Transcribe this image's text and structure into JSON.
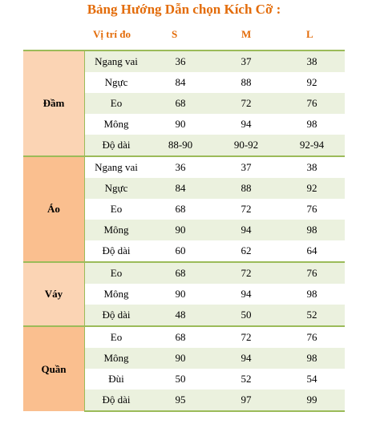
{
  "title": "Bảng Hướng Dẫn chọn Kích Cỡ :",
  "headers": {
    "position": "Vị trí đo",
    "s": "S",
    "m": "M",
    "l": "L"
  },
  "groups": [
    {
      "name": "Đầm",
      "rows": [
        {
          "position": "Ngang vai",
          "s": "36",
          "m": "37",
          "l": "38"
        },
        {
          "position": "Ngực",
          "s": "84",
          "m": "88",
          "l": "92"
        },
        {
          "position": "Eo",
          "s": "68",
          "m": "72",
          "l": "76"
        },
        {
          "position": "Mông",
          "s": "90",
          "m": "94",
          "l": "98"
        },
        {
          "position": "Độ dài",
          "s": "88-90",
          "m": "90-92",
          "l": "92-94"
        }
      ]
    },
    {
      "name": "Áo",
      "rows": [
        {
          "position": "Ngang vai",
          "s": "36",
          "m": "37",
          "l": "38"
        },
        {
          "position": "Ngực",
          "s": "84",
          "m": "88",
          "l": "92"
        },
        {
          "position": "Eo",
          "s": "68",
          "m": "72",
          "l": "76"
        },
        {
          "position": "Mông",
          "s": "90",
          "m": "94",
          "l": "98"
        },
        {
          "position": "Độ dài",
          "s": "60",
          "m": "62",
          "l": "64"
        }
      ]
    },
    {
      "name": "Váy",
      "rows": [
        {
          "position": "Eo",
          "s": "68",
          "m": "72",
          "l": "76"
        },
        {
          "position": "Mông",
          "s": "90",
          "m": "94",
          "l": "98"
        },
        {
          "position": "Độ dài",
          "s": "48",
          "m": "50",
          "l": "52"
        }
      ]
    },
    {
      "name": "Quần",
      "rows": [
        {
          "position": "Eo",
          "s": "68",
          "m": "72",
          "l": "76"
        },
        {
          "position": "Mông",
          "s": "90",
          "m": "94",
          "l": "98"
        },
        {
          "position": "Đùi",
          "s": "50",
          "m": "52",
          "l": "54"
        },
        {
          "position": "Độ dài",
          "s": "95",
          "m": "97",
          "l": "99"
        }
      ]
    }
  ]
}
